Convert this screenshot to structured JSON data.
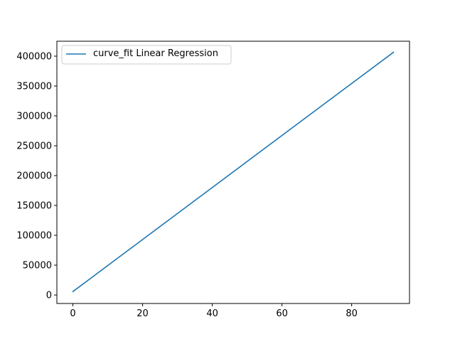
{
  "chart_data": {
    "type": "line",
    "title": "",
    "xlabel": "",
    "ylabel": "",
    "xlim": [
      -4.6,
      96.6
    ],
    "ylim": [
      -14200,
      425000
    ],
    "x_ticks": [
      0,
      20,
      40,
      60,
      80
    ],
    "y_ticks": [
      0,
      50000,
      100000,
      150000,
      200000,
      250000,
      300000,
      350000,
      400000
    ],
    "grid": false,
    "legend_position": "upper-left",
    "series": [
      {
        "name": "curve_fit Linear Regression",
        "color": "#1f77b4",
        "x": [
          0,
          92
        ],
        "y": [
          5800,
          406500
        ]
      }
    ]
  }
}
